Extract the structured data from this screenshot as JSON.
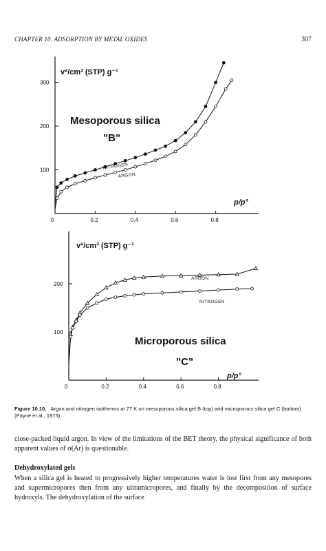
{
  "header": {
    "chapter": "CHAPTER 10. ADSORPTION BY METAL OXIDES",
    "page_number": "307"
  },
  "chart_data": [
    {
      "type": "line",
      "ylabel": "vª/cm³ (STP) g⁻¹",
      "xlabel": "p/p°",
      "annotation": "Mesoporous silica",
      "annotation2": "\"B\"",
      "xlim": [
        0,
        1.0
      ],
      "ylim": [
        0,
        350
      ],
      "x_ticks": [
        "0",
        "0.2",
        "0.4",
        "0.6",
        "0.8"
      ],
      "y_ticks": [
        "100",
        "200",
        "300"
      ],
      "series": [
        {
          "name": "NITROGEN",
          "x": [
            0.0,
            0.01,
            0.03,
            0.06,
            0.1,
            0.15,
            0.2,
            0.25,
            0.3,
            0.35,
            0.4,
            0.45,
            0.5,
            0.55,
            0.6,
            0.65,
            0.7,
            0.75,
            0.8,
            0.84
          ],
          "y": [
            20,
            60,
            70,
            78,
            86,
            93,
            100,
            107,
            114,
            121,
            128,
            136,
            145,
            154,
            167,
            185,
            210,
            245,
            300,
            345
          ]
        },
        {
          "name": "ARGON",
          "x": [
            0.0,
            0.01,
            0.03,
            0.06,
            0.1,
            0.15,
            0.2,
            0.25,
            0.3,
            0.35,
            0.4,
            0.45,
            0.5,
            0.55,
            0.6,
            0.65,
            0.7,
            0.75,
            0.8,
            0.85,
            0.88
          ],
          "y": [
            10,
            35,
            50,
            60,
            68,
            75,
            82,
            88,
            94,
            100,
            107,
            114,
            122,
            131,
            142,
            158,
            180,
            210,
            245,
            285,
            305
          ]
        }
      ]
    },
    {
      "type": "line",
      "ylabel": "vª/cm³ (STP) g⁻¹",
      "xlabel": "p/p°",
      "annotation": "Microporous silica",
      "annotation2": "\"C\"",
      "xlim": [
        0,
        1.0
      ],
      "ylim": [
        0,
        300
      ],
      "x_ticks": [
        "0",
        "0.2",
        "0.4",
        "0.6",
        "0.8"
      ],
      "y_ticks": [
        "100",
        "200"
      ],
      "series": [
        {
          "name": "ARGON",
          "x": [
            0.0,
            0.01,
            0.02,
            0.04,
            0.06,
            0.1,
            0.15,
            0.2,
            0.25,
            0.3,
            0.35,
            0.4,
            0.5,
            0.6,
            0.7,
            0.8,
            0.9,
            1.0
          ],
          "y": [
            40,
            95,
            110,
            125,
            140,
            160,
            178,
            192,
            202,
            208,
            212,
            214,
            216,
            217,
            218,
            219,
            220,
            232
          ]
        },
        {
          "name": "NITROGEN",
          "x": [
            0.0,
            0.01,
            0.02,
            0.04,
            0.06,
            0.1,
            0.15,
            0.2,
            0.25,
            0.3,
            0.35,
            0.4,
            0.5,
            0.6,
            0.7,
            0.8,
            0.9,
            0.98
          ],
          "y": [
            30,
            90,
            108,
            122,
            135,
            150,
            160,
            168,
            172,
            175,
            177,
            179,
            181,
            183,
            185,
            187,
            189,
            190
          ]
        }
      ]
    }
  ],
  "caption": {
    "label": "Figure 10.10.",
    "text": "Argon and nitrogen isotherms at 77 K on mesoporous silica gel B (top) and microporous silica gel C (bottom) (Payne et al., 1973)."
  },
  "paragraph1": "close-packed liquid argon. In view of the limitations of the BET theory, the physical significance of both apparent values of σ(Ar) is questionable.",
  "section_heading": "Dehydroxylated gels",
  "paragraph2": "When a silica gel is heated to progressively higher temperatures water is lost first from any mesopores and supermicropores then from any ultramicropores, and finally by the decomposition of surface hydroxyls. The dehydroxylation of the surface"
}
